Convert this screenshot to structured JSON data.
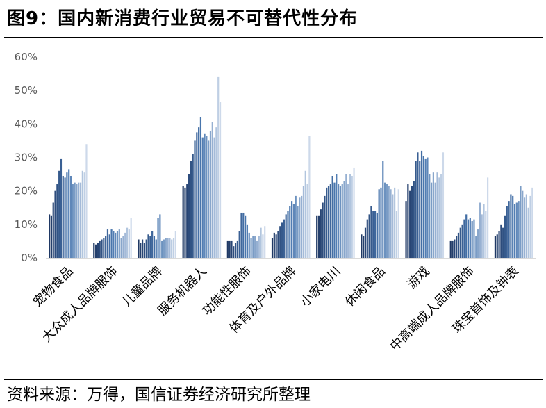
{
  "title": "图9：国内新消费行业贸易不可替代性分布",
  "source": "资料来源：万得，国信证券经济研究所整理",
  "chart_data": {
    "type": "bar",
    "ylim": [
      0,
      60
    ],
    "yticks": [
      0,
      10,
      20,
      30,
      40,
      50,
      60
    ],
    "ytick_format": "percent",
    "grid": false,
    "legend": "none",
    "colors": {
      "dark": "#1f3864",
      "mid": "#4a78b0",
      "light": "#cdd9ea"
    },
    "categories": [
      "宠物食品",
      "大众成人品牌服饰",
      "儿童品牌",
      "服务机器人",
      "功能性服饰",
      "体育及户外品牌",
      "小家电川",
      "休闲食品",
      "游戏",
      "中高端成人品牌服饰",
      "珠宝首饰及钟表"
    ],
    "values": [
      [
        13,
        12.5,
        16.5,
        20,
        22,
        26,
        29.5,
        24.5,
        24,
        25.5,
        26.5,
        24.5,
        22,
        22.5,
        22,
        22.5,
        22.5,
        26,
        25.5,
        34
      ],
      [
        4.5,
        4,
        4.5,
        5,
        5.5,
        6,
        6.5,
        8.5,
        7,
        8.5,
        8,
        7.5,
        8,
        8.5,
        6,
        6.5,
        7.5,
        9,
        8.5,
        12
      ],
      [
        5.5,
        4.5,
        5.5,
        4.5,
        5.5,
        7,
        6.5,
        8,
        6.5,
        5.5,
        12,
        13,
        5,
        5.5,
        6,
        6,
        6,
        5.5,
        6,
        8
      ],
      [
        21.5,
        21,
        22,
        25,
        29,
        31,
        35,
        37.5,
        39,
        42,
        36,
        37,
        36.5,
        35,
        38,
        40.5,
        36,
        39,
        54,
        46.5
      ],
      [
        5,
        5,
        5,
        3.5,
        4.5,
        5,
        8,
        13.5,
        13.5,
        12.5,
        10,
        7.5,
        6,
        6.5,
        6.5,
        5,
        6.5,
        9,
        7,
        9.5
      ],
      [
        6,
        7.5,
        7,
        8,
        9.5,
        10.5,
        11.5,
        13,
        14,
        15.5,
        17,
        16,
        18.5,
        15.5,
        18,
        18.5,
        21.5,
        26,
        22,
        36.5
      ],
      [
        12.5,
        12.5,
        14.5,
        16.5,
        18.5,
        21,
        21.5,
        22,
        24.5,
        22.5,
        25,
        22,
        21.5,
        22,
        23,
        25,
        22,
        25,
        24.5,
        27
      ],
      [
        7,
        6.5,
        9,
        11.5,
        13,
        15.5,
        14,
        14,
        13.5,
        20.5,
        21,
        29,
        22.5,
        22,
        21.5,
        20.5,
        19,
        21,
        14,
        20.5
      ],
      [
        17,
        22,
        20,
        21.5,
        23,
        29,
        31.5,
        29,
        32,
        30.5,
        29.5,
        30,
        25,
        22.5,
        25.5,
        22.5,
        25.5,
        24,
        25,
        31.5
      ],
      [
        5,
        5,
        5.5,
        6.5,
        7.5,
        9,
        10,
        11.5,
        13,
        11.5,
        12,
        11,
        11.5,
        6.5,
        8.5,
        16.5,
        13,
        16,
        14,
        24
      ],
      [
        6.5,
        7,
        8,
        10,
        9,
        12.5,
        15.5,
        17,
        19,
        18.5,
        16,
        16.5,
        17,
        21.5,
        20,
        18,
        19,
        15,
        18.5,
        21
      ]
    ]
  }
}
